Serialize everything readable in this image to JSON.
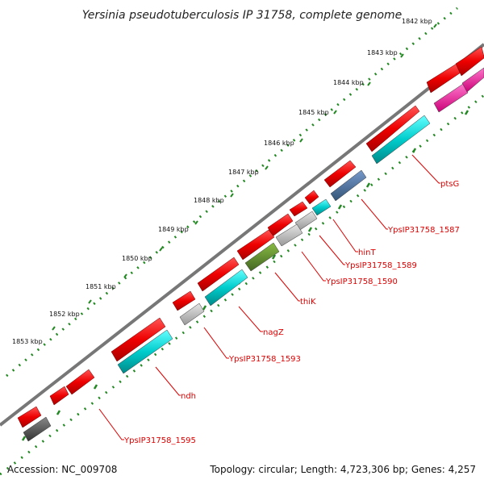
{
  "title": "Yersinia pseudotuberculosis IP 31758, complete genome",
  "footer": {
    "accession": "Accession: NC_009708",
    "summary": "Topology: circular; Length: 4,723,306 bp; Genes: 4,257"
  },
  "ruler": {
    "unit": "kbp",
    "ticks": [
      {
        "label": "1842 kbp"
      },
      {
        "label": "1843 kbp"
      },
      {
        "label": "1844 kbp"
      },
      {
        "label": "1845 kbp"
      },
      {
        "label": "1846 kbp"
      },
      {
        "label": "1847 kbp"
      },
      {
        "label": "1848 kbp"
      },
      {
        "label": "1849 kbp"
      },
      {
        "label": "1850 kbp"
      },
      {
        "label": "1851 kbp"
      },
      {
        "label": "1852 kbp"
      },
      {
        "label": "1853 kbp"
      }
    ]
  },
  "gene_labels": [
    {
      "text": "ptsG"
    },
    {
      "text": "YpsIP31758_1587"
    },
    {
      "text": "hinT"
    },
    {
      "text": "YpsIP31758_1589"
    },
    {
      "text": "YpsIP31758_1590"
    },
    {
      "text": "thiK"
    },
    {
      "text": "nagZ"
    },
    {
      "text": "YpsIP31758_1593"
    },
    {
      "text": "ndh"
    },
    {
      "text": "YpsIP31758_1595"
    }
  ],
  "colors": {
    "backbone": "#777777",
    "cds_forward": "#ee0000",
    "cds_red_alt": "#ff0033",
    "feature_cyan": "#00cccc",
    "feature_magenta": "#ff33aa",
    "feature_blue": "#4477aa",
    "feature_gray": "#bbbbbb",
    "feature_dark_gray": "#555555",
    "feature_olive": "#669933",
    "tick_green": "#228822",
    "label_red": "#dd0000"
  }
}
